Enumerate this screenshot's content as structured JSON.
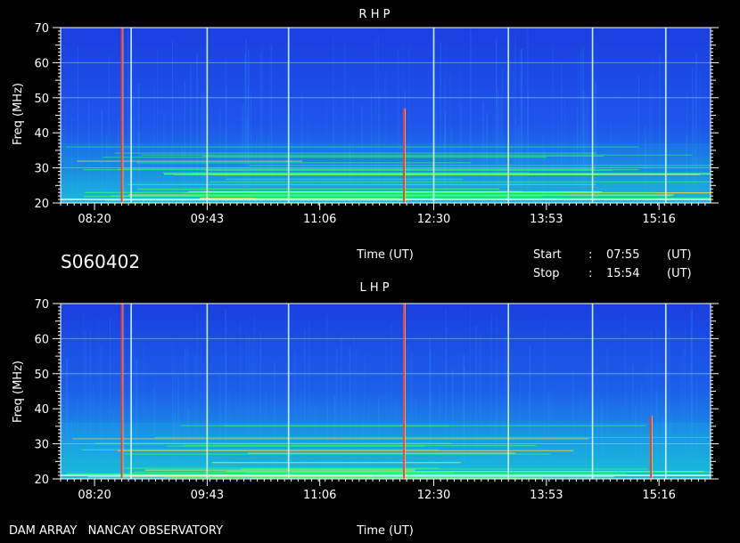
{
  "observation_id": "S060402",
  "time_axis_label": "Time (UT)",
  "footer_left": "DAM ARRAY   NANCAY OBSERVATORY",
  "start": {
    "label": "Start",
    "sep": ":",
    "value": "07:55",
    "unit": "(UT)"
  },
  "stop": {
    "label": "Stop",
    "sep": ":",
    "value": "15:54",
    "unit": "(UT)"
  },
  "colors": {
    "background": "#000000",
    "spectrum_base": "#1e46e6",
    "emission": "#00ff60",
    "burst": "#ff3030",
    "grid": "#cfffff"
  },
  "chart_data": [
    {
      "type": "heatmap",
      "title": "R H P",
      "xlabel": "Time (UT)",
      "ylabel": "Freq (MHz)",
      "xlim": [
        "07:55",
        "15:54"
      ],
      "ylim": [
        20,
        70
      ],
      "x_ticks": [
        "08:20",
        "09:43",
        "11:06",
        "12:30",
        "13:53",
        "15:16"
      ],
      "y_ticks": [
        20,
        30,
        40,
        50,
        60,
        70
      ],
      "grid": true,
      "vertical_markers": [
        "08:47",
        "09:43",
        "10:43",
        "12:30",
        "13:25",
        "14:27",
        "15:21"
      ],
      "horizontal_markers": [
        30,
        50,
        60
      ],
      "bursts": [
        {
          "time": "08:40",
          "freq_min": 20,
          "freq_max": 70
        },
        {
          "time": "12:08",
          "freq_min": 20,
          "freq_max": 47
        }
      ],
      "emission_bands": [
        {
          "freq_min": 20,
          "freq_max": 23,
          "intensity": 0.9
        },
        {
          "freq_min": 23,
          "freq_max": 26,
          "intensity": 0.75
        },
        {
          "freq_min": 26,
          "freq_max": 29,
          "intensity": 0.6
        },
        {
          "freq_min": 29,
          "freq_max": 33,
          "intensity": 0.45
        },
        {
          "freq_min": 33,
          "freq_max": 37,
          "intensity": 0.3
        }
      ]
    },
    {
      "type": "heatmap",
      "title": "L H P",
      "xlabel": "Time (UT)",
      "ylabel": "Freq (MHz)",
      "xlim": [
        "07:55",
        "15:54"
      ],
      "ylim": [
        20,
        70
      ],
      "x_ticks": [
        "08:20",
        "09:43",
        "11:06",
        "12:30",
        "13:53",
        "15:16"
      ],
      "y_ticks": [
        20,
        30,
        40,
        50,
        60,
        70
      ],
      "grid": true,
      "vertical_markers": [
        "08:47",
        "09:43",
        "10:43",
        "12:08",
        "13:25",
        "14:27",
        "15:21"
      ],
      "horizontal_markers": [
        30,
        50,
        60
      ],
      "bursts": [
        {
          "time": "08:40",
          "freq_min": 20,
          "freq_max": 70
        },
        {
          "time": "12:08",
          "freq_min": 20,
          "freq_max": 70
        },
        {
          "time": "15:10",
          "freq_min": 20,
          "freq_max": 38
        }
      ],
      "emission_bands": [
        {
          "freq_min": 20,
          "freq_max": 22,
          "intensity": 0.9
        },
        {
          "freq_min": 22,
          "freq_max": 26,
          "intensity": 0.7
        },
        {
          "freq_min": 26,
          "freq_max": 30,
          "intensity": 0.5
        },
        {
          "freq_min": 30,
          "freq_max": 36,
          "intensity": 0.35
        }
      ]
    }
  ]
}
